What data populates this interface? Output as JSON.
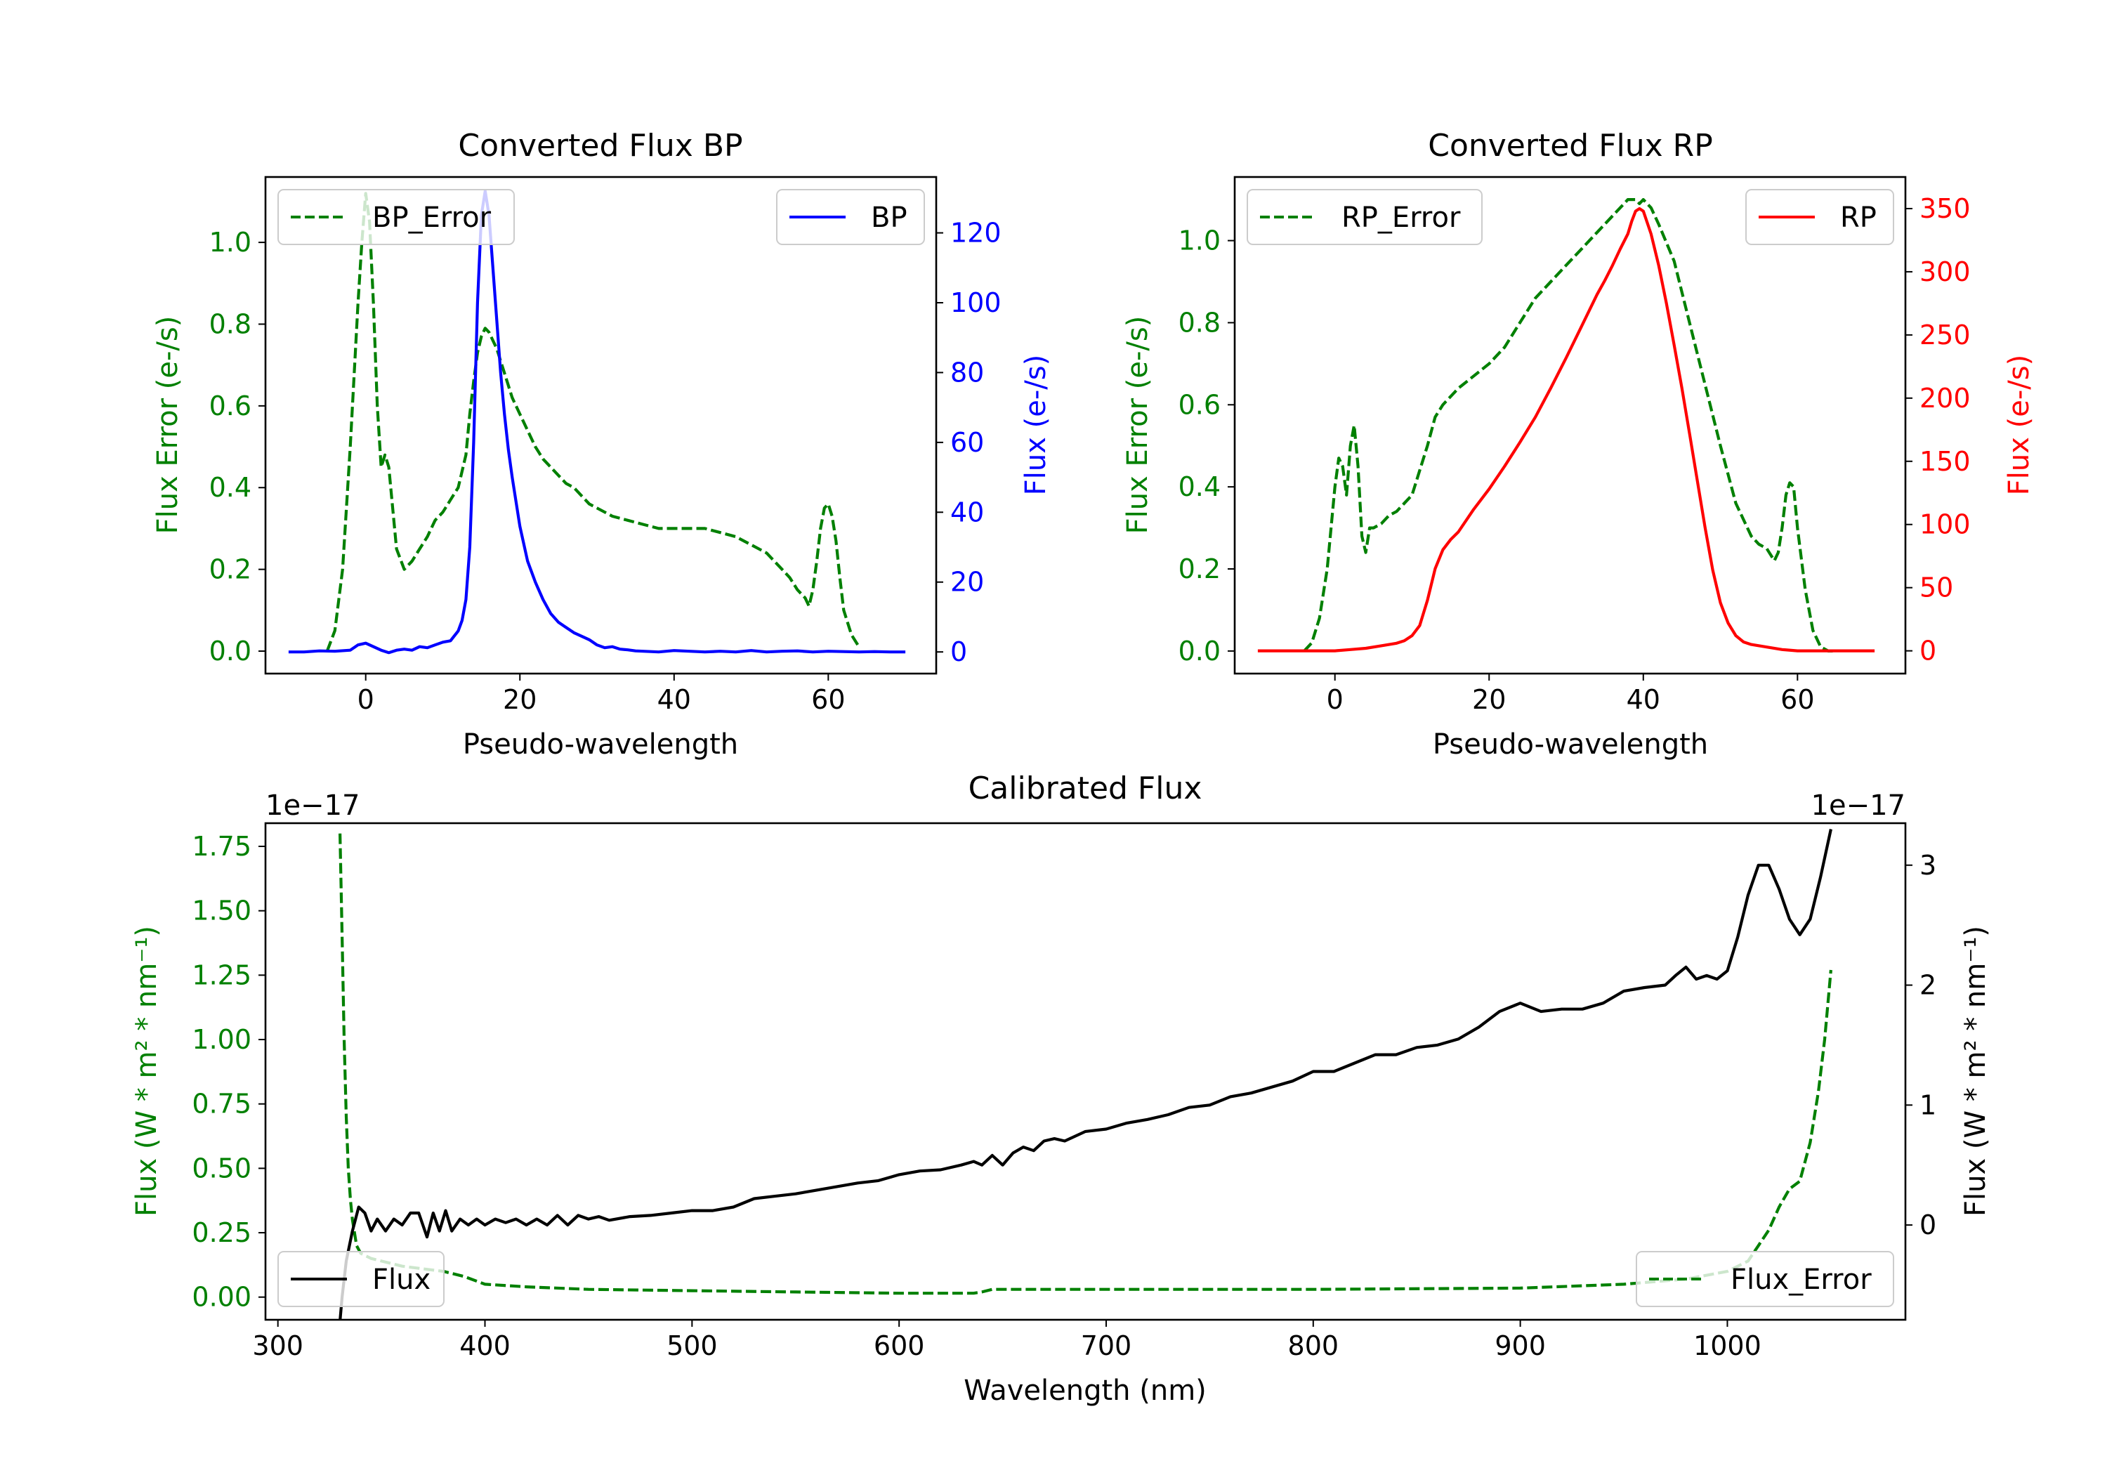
{
  "colors": {
    "error": "#008000",
    "bp": "#0000ff",
    "rp": "#ff0000",
    "flux": "#000000",
    "axis": "#000000",
    "legend_border": "#cccccc"
  },
  "chart_data": [
    {
      "id": "bp",
      "type": "line",
      "title": "Converted Flux BP",
      "xlabel": "Pseudo-wavelength",
      "ylabel_left": "Flux Error (e-/s)",
      "ylabel_right": "Flux (e-/s)",
      "xlim": [
        -13,
        74
      ],
      "ylim_left": [
        -0.055,
        1.16
      ],
      "ylim_right": [
        -6.2,
        136
      ],
      "xticks": [
        0,
        20,
        40,
        60
      ],
      "yticks_left": [
        0.0,
        0.2,
        0.4,
        0.6,
        0.8,
        1.0
      ],
      "yticks_left_labels": [
        "0.0",
        "0.2",
        "0.4",
        "0.6",
        "0.8",
        "1.0"
      ],
      "yticks_right": [
        0,
        20,
        40,
        60,
        80,
        100,
        120
      ],
      "yticks_right_labels": [
        "0",
        "20",
        "40",
        "60",
        "80",
        "100",
        "120"
      ],
      "legend_left": "BP_Error",
      "legend_right": "BP",
      "series_error": {
        "name": "BP_Error",
        "x": [
          -5,
          -4,
          -3,
          -2,
          -1,
          -0.5,
          0,
          0.5,
          1,
          1.5,
          2,
          2.5,
          3,
          3.5,
          4,
          5,
          6,
          7,
          8,
          9,
          10,
          11,
          12,
          13,
          13.5,
          14,
          14.5,
          15,
          15.5,
          16,
          17,
          18,
          19,
          20,
          21,
          22,
          23,
          24,
          25,
          26,
          27,
          28,
          29,
          30,
          32,
          34,
          36,
          38,
          40,
          42,
          44,
          46,
          48,
          50,
          52,
          54,
          55,
          56,
          57,
          57.5,
          58,
          58.5,
          59,
          59.5,
          60,
          60.5,
          61,
          61.5,
          62,
          63,
          64
        ],
        "y": [
          0,
          0.05,
          0.2,
          0.5,
          0.85,
          1.0,
          1.12,
          1.05,
          0.85,
          0.6,
          0.45,
          0.48,
          0.45,
          0.35,
          0.25,
          0.2,
          0.22,
          0.25,
          0.28,
          0.32,
          0.34,
          0.37,
          0.4,
          0.48,
          0.58,
          0.66,
          0.73,
          0.77,
          0.79,
          0.78,
          0.74,
          0.68,
          0.62,
          0.58,
          0.54,
          0.5,
          0.47,
          0.45,
          0.43,
          0.41,
          0.4,
          0.38,
          0.36,
          0.35,
          0.33,
          0.32,
          0.31,
          0.3,
          0.3,
          0.3,
          0.3,
          0.29,
          0.28,
          0.26,
          0.24,
          0.2,
          0.18,
          0.15,
          0.13,
          0.11,
          0.15,
          0.22,
          0.3,
          0.35,
          0.36,
          0.33,
          0.27,
          0.18,
          0.1,
          0.04,
          0.01
        ]
      },
      "series_flux": {
        "name": "BP",
        "x": [
          -10,
          -8,
          -6,
          -4,
          -2,
          -1,
          0,
          1,
          2,
          3,
          4,
          5,
          6,
          7,
          8,
          9,
          10,
          11,
          12,
          12.5,
          13,
          13.5,
          14,
          14.5,
          15,
          15.5,
          16,
          16.5,
          17,
          17.5,
          18,
          18.5,
          19,
          20,
          21,
          22,
          23,
          24,
          25,
          26,
          27,
          28,
          29,
          30,
          31,
          32,
          33,
          34,
          35,
          36,
          38,
          40,
          42,
          44,
          46,
          48,
          50,
          52,
          54,
          56,
          58,
          60,
          62,
          64,
          66,
          68,
          70
        ],
        "y": [
          0,
          0,
          0.3,
          0.2,
          0.5,
          2,
          2.5,
          1.5,
          0.5,
          -0.2,
          0.5,
          0.8,
          0.5,
          1.5,
          1.2,
          2,
          2.8,
          3.2,
          6,
          9,
          15,
          30,
          60,
          100,
          125,
          132,
          125,
          110,
          95,
          80,
          68,
          58,
          50,
          36,
          26,
          20,
          15,
          11,
          8.5,
          7,
          5.5,
          4.5,
          3.5,
          2,
          1.2,
          1.5,
          0.8,
          0.6,
          0.3,
          0.2,
          0,
          0.4,
          0.2,
          0,
          0.2,
          0,
          0.4,
          0,
          0.2,
          0.3,
          0,
          0.2,
          0.1,
          0,
          0.1,
          0,
          0
        ]
      }
    },
    {
      "id": "rp",
      "type": "line",
      "title": "Converted Flux RP",
      "xlabel": "Pseudo-wavelength",
      "ylabel_left": "Flux Error (e-/s)",
      "ylabel_right": "Flux (e-/s)",
      "xlim": [
        -13,
        74
      ],
      "ylim_left": [
        -0.055,
        1.155
      ],
      "ylim_right": [
        -18,
        375
      ],
      "xticks": [
        0,
        20,
        40,
        60
      ],
      "yticks_left": [
        0.0,
        0.2,
        0.4,
        0.6,
        0.8,
        1.0
      ],
      "yticks_left_labels": [
        "0.0",
        "0.2",
        "0.4",
        "0.6",
        "0.8",
        "1.0"
      ],
      "yticks_right": [
        0,
        50,
        100,
        150,
        200,
        250,
        300,
        350
      ],
      "yticks_right_labels": [
        "0",
        "50",
        "100",
        "150",
        "200",
        "250",
        "300",
        "350"
      ],
      "legend_left": "RP_Error",
      "legend_right": "RP",
      "series_error": {
        "name": "RP_Error",
        "x": [
          -4,
          -3,
          -2,
          -1,
          0,
          0.5,
          1,
          1.5,
          2,
          2.5,
          3,
          3.5,
          4,
          4.5,
          5,
          6,
          7,
          8,
          9,
          10,
          11,
          12,
          13,
          14,
          15,
          16,
          18,
          20,
          22,
          24,
          26,
          28,
          30,
          32,
          34,
          36,
          37,
          38,
          39,
          39.5,
          40,
          41,
          42,
          44,
          46,
          48,
          50,
          52,
          54,
          55,
          56,
          57,
          57.5,
          58,
          58.5,
          59,
          59.5,
          60,
          61,
          62,
          63,
          64,
          65
        ],
        "y": [
          0,
          0.02,
          0.08,
          0.2,
          0.4,
          0.47,
          0.45,
          0.38,
          0.5,
          0.55,
          0.45,
          0.28,
          0.24,
          0.3,
          0.3,
          0.31,
          0.33,
          0.34,
          0.36,
          0.38,
          0.44,
          0.5,
          0.57,
          0.6,
          0.62,
          0.64,
          0.67,
          0.7,
          0.74,
          0.8,
          0.86,
          0.9,
          0.94,
          0.98,
          1.02,
          1.06,
          1.08,
          1.1,
          1.1,
          1.09,
          1.1,
          1.08,
          1.04,
          0.95,
          0.8,
          0.65,
          0.5,
          0.36,
          0.28,
          0.26,
          0.25,
          0.22,
          0.24,
          0.3,
          0.38,
          0.41,
          0.4,
          0.3,
          0.15,
          0.05,
          0.01,
          0,
          0
        ]
      },
      "series_flux": {
        "name": "RP",
        "x": [
          -10,
          -8,
          -6,
          -4,
          -2,
          0,
          2,
          4,
          6,
          8,
          9,
          10,
          11,
          12,
          13,
          14,
          15,
          16,
          18,
          20,
          22,
          24,
          26,
          28,
          30,
          32,
          34,
          35,
          36,
          37,
          38,
          38.5,
          39,
          39.5,
          40,
          41,
          42,
          43,
          44,
          45,
          46,
          47,
          48,
          49,
          50,
          51,
          52,
          53,
          54,
          56,
          58,
          60,
          62,
          64,
          66,
          68,
          70
        ],
        "y": [
          0,
          0,
          0,
          0,
          0,
          0,
          1,
          2,
          4,
          6,
          8,
          12,
          20,
          40,
          65,
          80,
          88,
          94,
          112,
          128,
          146,
          165,
          185,
          208,
          232,
          257,
          282,
          293,
          305,
          318,
          330,
          340,
          348,
          350,
          348,
          330,
          305,
          275,
          242,
          208,
          172,
          135,
          98,
          64,
          38,
          22,
          12,
          7,
          5,
          3,
          1,
          0,
          0,
          0,
          0,
          0,
          0
        ]
      }
    },
    {
      "id": "calibrated",
      "type": "line",
      "title": "Calibrated Flux",
      "xlabel": "Wavelength (nm)",
      "ylabel_left": "Flux (W * m² * nm⁻¹)",
      "ylabel_right": "Flux (W * m² * nm⁻¹)",
      "offset_left": "1e−17",
      "offset_right": "1e−17",
      "xlim": [
        294,
        1086
      ],
      "ylim_left": [
        -0.088,
        1.84
      ],
      "ylim_right": [
        -0.79,
        3.35
      ],
      "xticks": [
        300,
        400,
        500,
        600,
        700,
        800,
        900,
        1000
      ],
      "yticks_left": [
        0.0,
        0.25,
        0.5,
        0.75,
        1.0,
        1.25,
        1.5,
        1.75
      ],
      "yticks_left_labels": [
        "0.00",
        "0.25",
        "0.50",
        "0.75",
        "1.00",
        "1.25",
        "1.50",
        "1.75"
      ],
      "yticks_right": [
        0,
        1,
        2,
        3
      ],
      "yticks_right_labels": [
        "0",
        "1",
        "2",
        "3"
      ],
      "legend_left": "Flux",
      "legend_right": "Flux_Error",
      "series_flux": {
        "name": "Flux",
        "x": [
          330,
          331,
          333,
          336,
          339,
          342,
          345,
          348,
          352,
          356,
          360,
          364,
          368,
          372,
          375,
          378,
          381,
          384,
          388,
          392,
          396,
          400,
          405,
          410,
          415,
          420,
          425,
          430,
          435,
          440,
          445,
          450,
          455,
          460,
          470,
          480,
          490,
          500,
          510,
          520,
          530,
          540,
          550,
          560,
          570,
          580,
          590,
          600,
          610,
          620,
          630,
          636,
          640,
          645,
          650,
          655,
          660,
          665,
          670,
          675,
          680,
          690,
          700,
          710,
          720,
          730,
          740,
          750,
          760,
          770,
          780,
          790,
          800,
          810,
          820,
          830,
          840,
          850,
          860,
          870,
          880,
          890,
          900,
          910,
          920,
          930,
          940,
          950,
          960,
          970,
          975,
          980,
          985,
          990,
          995,
          1000,
          1005,
          1010,
          1015,
          1020,
          1025,
          1030,
          1035,
          1040,
          1045,
          1050
        ],
        "y": [
          -0.8,
          -0.6,
          -0.3,
          -0.05,
          0.15,
          0.1,
          -0.05,
          0.05,
          -0.05,
          0.05,
          0.0,
          0.1,
          0.1,
          -0.1,
          0.1,
          -0.05,
          0.12,
          -0.05,
          0.05,
          0.0,
          0.05,
          0.0,
          0.05,
          0.02,
          0.05,
          0.0,
          0.05,
          0.0,
          0.08,
          0.0,
          0.08,
          0.05,
          0.07,
          0.04,
          0.07,
          0.08,
          0.1,
          0.12,
          0.12,
          0.15,
          0.22,
          0.24,
          0.26,
          0.29,
          0.32,
          0.35,
          0.37,
          0.42,
          0.45,
          0.46,
          0.5,
          0.53,
          0.5,
          0.58,
          0.5,
          0.6,
          0.65,
          0.62,
          0.7,
          0.72,
          0.7,
          0.78,
          0.8,
          0.85,
          0.88,
          0.92,
          0.98,
          1.0,
          1.07,
          1.1,
          1.15,
          1.2,
          1.28,
          1.28,
          1.35,
          1.42,
          1.42,
          1.48,
          1.5,
          1.55,
          1.65,
          1.78,
          1.85,
          1.78,
          1.8,
          1.8,
          1.85,
          1.95,
          1.98,
          2.0,
          2.08,
          2.15,
          2.05,
          2.08,
          2.05,
          2.12,
          2.4,
          2.75,
          3.0,
          3.0,
          2.8,
          2.55,
          2.42,
          2.55,
          2.9,
          3.3
        ]
      },
      "series_error": {
        "name": "Flux_Error",
        "x": [
          330,
          331,
          332,
          333,
          334,
          335,
          336,
          338,
          340,
          345,
          350,
          360,
          370,
          380,
          390,
          400,
          420,
          450,
          500,
          550,
          600,
          636,
          640,
          645,
          650,
          700,
          800,
          900,
          950,
          980,
          1000,
          1010,
          1015,
          1020,
          1025,
          1030,
          1035,
          1040,
          1044,
          1047,
          1050
        ],
        "y": [
          1.8,
          1.4,
          1.0,
          0.7,
          0.5,
          0.38,
          0.3,
          0.2,
          0.17,
          0.15,
          0.14,
          0.12,
          0.11,
          0.1,
          0.08,
          0.05,
          0.04,
          0.03,
          0.025,
          0.02,
          0.015,
          0.015,
          0.02,
          0.03,
          0.03,
          0.03,
          0.03,
          0.035,
          0.05,
          0.07,
          0.1,
          0.14,
          0.2,
          0.26,
          0.35,
          0.42,
          0.45,
          0.6,
          0.8,
          1.0,
          1.27
        ]
      }
    }
  ]
}
